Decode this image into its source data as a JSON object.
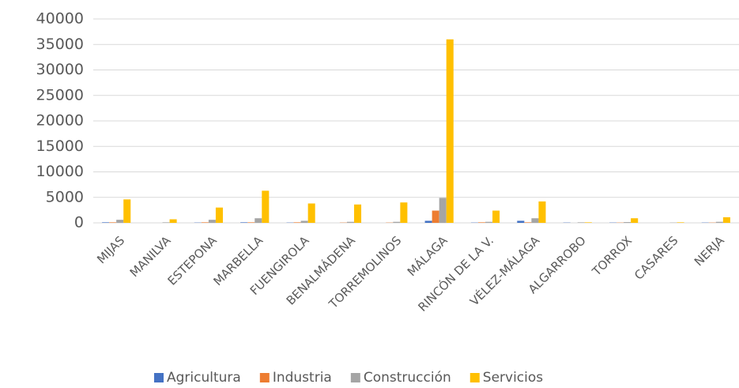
{
  "chart_data": {
    "type": "bar",
    "categories": [
      "MIJAS",
      "MANILVA",
      "ESTEPONA",
      "MARBELLA",
      "FUENGIROLA",
      "BENALMÁDENA",
      "TORREMOLINOS",
      "MÁLAGA",
      "RINCÓN DE LA V.",
      "VÉLEZ-MÁLAGA",
      "ALGARROBO",
      "TORROX",
      "CASARES",
      "NERJA"
    ],
    "series": [
      {
        "name": "Agricultura",
        "color": "#4472c4",
        "values": [
          100,
          0,
          50,
          100,
          50,
          0,
          0,
          400,
          50,
          400,
          50,
          50,
          0,
          50
        ]
      },
      {
        "name": "Industria",
        "color": "#ed7d31",
        "values": [
          100,
          0,
          100,
          100,
          100,
          50,
          50,
          2400,
          100,
          100,
          0,
          50,
          0,
          50
        ]
      },
      {
        "name": "Construcción",
        "color": "#a5a5a5",
        "values": [
          600,
          100,
          600,
          900,
          400,
          200,
          200,
          4900,
          200,
          900,
          100,
          150,
          50,
          200
        ]
      },
      {
        "name": "Servicios",
        "color": "#ffc000",
        "values": [
          4600,
          700,
          3000,
          6300,
          3800,
          3600,
          4000,
          36000,
          2400,
          4200,
          100,
          900,
          100,
          1100
        ]
      }
    ],
    "ylim": [
      0,
      40000
    ],
    "yticks": [
      0,
      5000,
      10000,
      15000,
      20000,
      25000,
      30000,
      35000,
      40000
    ],
    "grid": true,
    "legend": "bottom"
  }
}
